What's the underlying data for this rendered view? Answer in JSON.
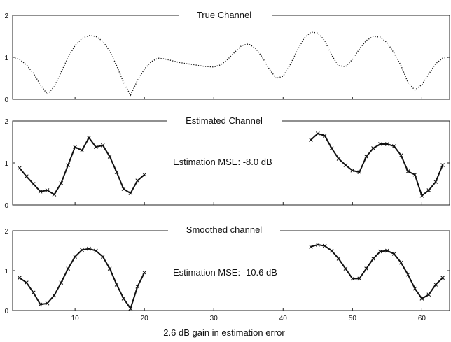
{
  "chart_data": [
    {
      "type": "line",
      "title": "True Channel",
      "xlim": [
        1,
        64
      ],
      "ylim": [
        0,
        2
      ],
      "yticks": [
        0,
        1,
        2
      ],
      "series": [
        {
          "style": "dotted",
          "segments": [
            {
              "x": [
                1,
                2,
                3,
                4,
                5,
                6,
                7,
                8,
                9,
                10,
                11,
                12,
                13,
                14,
                15,
                16,
                17,
                18,
                19,
                20,
                21,
                22,
                23,
                24,
                25,
                26,
                27,
                28,
                29,
                30,
                31,
                32,
                33,
                34,
                35,
                36,
                37,
                38,
                39,
                40,
                41,
                42,
                43,
                44,
                45,
                46,
                47,
                48,
                49,
                50,
                51,
                52,
                53,
                54,
                55,
                56,
                57,
                58,
                59,
                60,
                61,
                62,
                63,
                64
              ],
              "y": [
                1.0,
                0.95,
                0.82,
                0.62,
                0.35,
                0.12,
                0.3,
                0.65,
                1.0,
                1.28,
                1.45,
                1.52,
                1.5,
                1.38,
                1.15,
                0.8,
                0.4,
                0.1,
                0.45,
                0.72,
                0.9,
                0.98,
                0.96,
                0.92,
                0.88,
                0.85,
                0.83,
                0.8,
                0.78,
                0.77,
                0.82,
                0.95,
                1.12,
                1.28,
                1.32,
                1.22,
                1.0,
                0.72,
                0.5,
                0.55,
                0.82,
                1.15,
                1.45,
                1.6,
                1.58,
                1.4,
                1.05,
                0.8,
                0.78,
                0.95,
                1.2,
                1.4,
                1.5,
                1.48,
                1.35,
                1.1,
                0.8,
                0.4,
                0.22,
                0.35,
                0.6,
                0.85,
                0.98,
                1.0
              ]
            }
          ]
        }
      ]
    },
    {
      "type": "line",
      "title": "Estimated Channel",
      "annotation": "Estimation MSE: -8.0 dB",
      "xlim": [
        1,
        64
      ],
      "ylim": [
        0,
        2
      ],
      "yticks": [
        0,
        1,
        2
      ],
      "series": [
        {
          "style": "solid-with-markers",
          "segments": [
            {
              "x": [
                2,
                3,
                4,
                5,
                6,
                7,
                8,
                9,
                10,
                11,
                12,
                13,
                14,
                15,
                16,
                17,
                18,
                19,
                20
              ],
              "y": [
                0.88,
                0.68,
                0.5,
                0.32,
                0.35,
                0.25,
                0.52,
                0.95,
                1.38,
                1.3,
                1.6,
                1.38,
                1.42,
                1.15,
                0.78,
                0.38,
                0.28,
                0.58,
                0.72
              ]
            },
            {
              "x": [
                44,
                45,
                46,
                47,
                48,
                49,
                50,
                51,
                52,
                53,
                54,
                55,
                56,
                57,
                58,
                59,
                60,
                61,
                62,
                63
              ],
              "y": [
                1.55,
                1.7,
                1.65,
                1.35,
                1.1,
                0.95,
                0.82,
                0.78,
                1.15,
                1.35,
                1.45,
                1.45,
                1.4,
                1.18,
                0.8,
                0.72,
                0.22,
                0.35,
                0.55,
                0.95
              ]
            }
          ]
        }
      ]
    },
    {
      "type": "line",
      "title": "Smoothed channel",
      "annotation": "Estimation MSE: -10.6 dB",
      "xlabel": "2.6 dB gain in estimation error",
      "xlim": [
        1,
        64
      ],
      "ylim": [
        0,
        2
      ],
      "yticks": [
        0,
        1,
        2
      ],
      "xticks": [
        10,
        20,
        30,
        40,
        50,
        60
      ],
      "series": [
        {
          "style": "solid-with-markers",
          "segments": [
            {
              "x": [
                2,
                3,
                4,
                5,
                6,
                7,
                8,
                9,
                10,
                11,
                12,
                13,
                14,
                15,
                16,
                17,
                18,
                19,
                20
              ],
              "y": [
                0.82,
                0.7,
                0.45,
                0.15,
                0.18,
                0.38,
                0.7,
                1.05,
                1.35,
                1.52,
                1.55,
                1.5,
                1.35,
                1.05,
                0.65,
                0.3,
                0.05,
                0.6,
                0.95
              ]
            },
            {
              "x": [
                44,
                45,
                46,
                47,
                48,
                49,
                50,
                51,
                52,
                53,
                54,
                55,
                56,
                57,
                58,
                59,
                60,
                61,
                62,
                63
              ],
              "y": [
                1.6,
                1.65,
                1.62,
                1.5,
                1.3,
                1.05,
                0.8,
                0.8,
                1.05,
                1.3,
                1.48,
                1.5,
                1.42,
                1.2,
                0.9,
                0.55,
                0.3,
                0.4,
                0.65,
                0.82
              ]
            }
          ]
        }
      ]
    }
  ]
}
